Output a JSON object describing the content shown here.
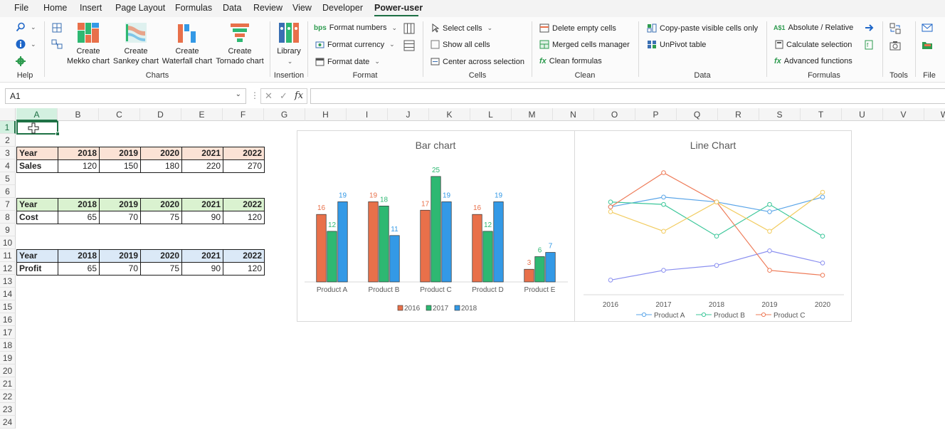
{
  "menu": {
    "items": [
      "File",
      "Home",
      "Insert",
      "Page Layout",
      "Formulas",
      "Data",
      "Review",
      "View",
      "Developer",
      "Power-user"
    ],
    "active": "Power-user"
  },
  "ribbon": {
    "groups": {
      "help": "Help",
      "charts": "Charts",
      "insertion": "Insertion",
      "format": "Format",
      "cells": "Cells",
      "clean": "Clean",
      "data": "Data",
      "formulas": "Formulas",
      "tools": "Tools",
      "file": "File"
    },
    "charts_buttons": [
      {
        "line1": "Create",
        "line2": "Mekko chart"
      },
      {
        "line1": "Create",
        "line2": "Sankey chart"
      },
      {
        "line1": "Create",
        "line2": "Waterfall chart"
      },
      {
        "line1": "Create",
        "line2": "Tornado chart"
      }
    ],
    "library": "Library",
    "format_items": [
      "Format numbers",
      "Format currency",
      "Format date"
    ],
    "format_icon_text": "bps",
    "cells_items": [
      "Select cells",
      "Show all cells",
      "Center across selection"
    ],
    "clean_items": [
      "Delete empty cells",
      "Merged cells manager",
      "Clean formulas"
    ],
    "data_items": [
      "Copy-paste visible cells only",
      "UnPivot table"
    ],
    "formulas_items": [
      "Absolute / Relative",
      "Calculate selection",
      "Advanced functions"
    ],
    "formulas_icon_text": "A$1"
  },
  "formula_bar": {
    "name_box": "A1",
    "fx": "fx",
    "value": ""
  },
  "grid": {
    "columns": [
      "A",
      "B",
      "C",
      "D",
      "E",
      "F",
      "G",
      "H",
      "I",
      "J",
      "K",
      "L",
      "M",
      "N",
      "O",
      "P",
      "Q",
      "R",
      "S",
      "T",
      "U",
      "V",
      "W"
    ],
    "rows": [
      "1",
      "2",
      "3",
      "4",
      "5",
      "6",
      "7",
      "8",
      "9",
      "10",
      "11",
      "12",
      "13",
      "14",
      "15",
      "16",
      "17",
      "18",
      "19",
      "20",
      "21",
      "22",
      "23",
      "24"
    ],
    "selected_cell": "A1"
  },
  "tables": [
    {
      "header": "Year",
      "years": [
        "2018",
        "2019",
        "2020",
        "2021",
        "2022"
      ],
      "label": "Sales",
      "values": [
        "120",
        "150",
        "180",
        "220",
        "270"
      ],
      "color": "#fbe2d5"
    },
    {
      "header": "Year",
      "years": [
        "2018",
        "2019",
        "2020",
        "2021",
        "2022"
      ],
      "label": "Cost",
      "values": [
        "65",
        "70",
        "75",
        "90",
        "120"
      ],
      "color": "#daf2d0"
    },
    {
      "header": "Year",
      "years": [
        "2018",
        "2019",
        "2020",
        "2021",
        "2022"
      ],
      "label": "Profit",
      "values": [
        "65",
        "70",
        "75",
        "90",
        "120"
      ],
      "color": "#dbe9f7"
    }
  ],
  "chart_data": [
    {
      "type": "bar",
      "title": "Bar chart",
      "categories": [
        "Product A",
        "Product B",
        "Product C",
        "Product D",
        "Product E"
      ],
      "series": [
        {
          "name": "2016",
          "values": [
            16,
            19,
            17,
            16,
            3
          ],
          "color": "#e8704a"
        },
        {
          "name": "2017",
          "values": [
            12,
            18,
            25,
            12,
            6
          ],
          "color": "#2eb872"
        },
        {
          "name": "2018",
          "values": [
            19,
            11,
            19,
            19,
            7
          ],
          "color": "#3399e6"
        }
      ],
      "ylim": [
        0,
        27
      ],
      "legend": "bottom",
      "grid": false
    },
    {
      "type": "line",
      "title": "Line Chart",
      "x": [
        "2016",
        "2017",
        "2018",
        "2019",
        "2020"
      ],
      "series": [
        {
          "name": "Product A",
          "values": [
            1,
            3,
            4,
            7,
            4.5
          ],
          "color": "#8a8ff0",
          "legend": false
        },
        {
          "name": "Product A",
          "values": [
            16,
            18,
            17,
            15,
            18
          ],
          "color": "#5aa5e8",
          "legend": true
        },
        {
          "name": "Product B",
          "values": [
            17,
            16.5,
            10,
            16.5,
            10
          ],
          "color": "#3cc79a",
          "legend": true
        },
        {
          "name": "Product C",
          "values": [
            16,
            23,
            17,
            3,
            2
          ],
          "color": "#ee7b58",
          "legend": true
        },
        {
          "name": "",
          "values": [
            15,
            11,
            17,
            11,
            19
          ],
          "color": "#f2cc60",
          "legend": false
        }
      ],
      "ylim": [
        -2,
        26
      ],
      "legend": "bottom",
      "grid": false
    }
  ]
}
